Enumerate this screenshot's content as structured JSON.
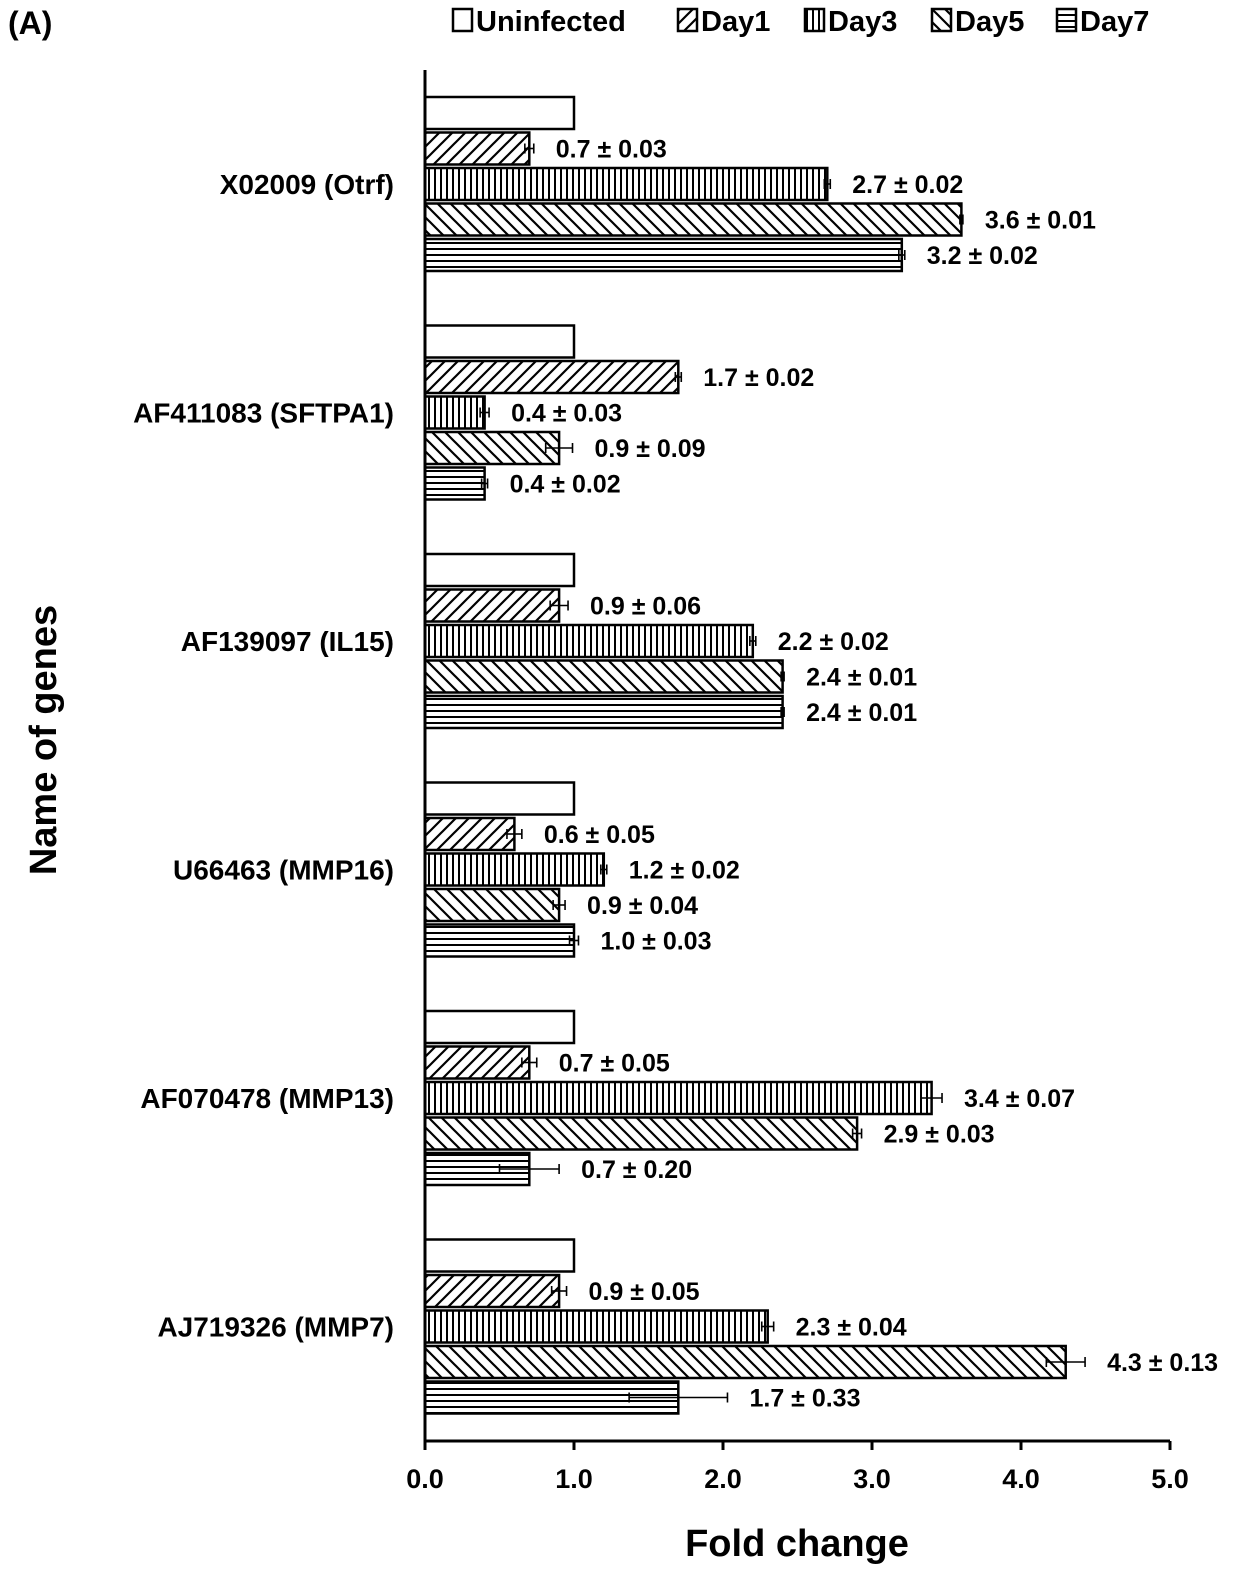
{
  "panel_label": "(A)",
  "chart_data": {
    "type": "bar",
    "orientation": "horizontal",
    "title": "",
    "xlabel": "Fold change",
    "ylabel": "Name of genes",
    "xlim": [
      0,
      5
    ],
    "xticks": [
      "0.0",
      "1.0",
      "2.0",
      "3.0",
      "4.0",
      "5.0"
    ],
    "legend_position": "top",
    "categories": [
      "X02009 (Otrf)",
      "AF411083 (SFTPA1)",
      "AF139097 (IL15)",
      "U66463 (MMP16)",
      "AF070478 (MMP13)",
      "AJ719326 (MMP7)"
    ],
    "series": [
      {
        "name": "Uninfected",
        "pattern": "none",
        "values": [
          1,
          1,
          1,
          1,
          1,
          1
        ],
        "errors": [
          0,
          0,
          0,
          0,
          0,
          0
        ],
        "labels": [
          "",
          "",
          "",
          "",
          "",
          ""
        ]
      },
      {
        "name": "Day1",
        "pattern": "diagonal-up",
        "values": [
          0.7,
          1.7,
          0.9,
          0.6,
          0.7,
          0.9
        ],
        "errors": [
          0.03,
          0.02,
          0.06,
          0.05,
          0.05,
          0.05
        ],
        "labels": [
          "0.7 ± 0.03",
          "1.7 ± 0.02",
          "0.9 ± 0.06",
          "0.6 ± 0.05",
          "0.7 ± 0.05",
          "0.9 ± 0.05"
        ]
      },
      {
        "name": "Day3",
        "pattern": "vertical",
        "values": [
          2.7,
          0.4,
          2.2,
          1.2,
          3.4,
          2.3
        ],
        "errors": [
          0.02,
          0.03,
          0.02,
          0.02,
          0.07,
          0.04
        ],
        "labels": [
          "2.7 ± 0.02",
          "0.4 ± 0.03",
          "2.2 ± 0.02",
          "1.2 ± 0.02",
          "3.4 ± 0.07",
          "2.3 ± 0.04"
        ]
      },
      {
        "name": "Day5",
        "pattern": "diagonal-down",
        "values": [
          3.6,
          0.9,
          2.4,
          0.9,
          2.9,
          4.3
        ],
        "errors": [
          0.01,
          0.09,
          0.01,
          0.04,
          0.03,
          0.13
        ],
        "labels": [
          "3.6 ± 0.01",
          "0.9 ± 0.09",
          "2.4 ± 0.01",
          "0.9 ± 0.04",
          "2.9 ± 0.03",
          "4.3 ± 0.13"
        ]
      },
      {
        "name": "Day7",
        "pattern": "horizontal",
        "values": [
          3.2,
          0.4,
          2.4,
          1.0,
          0.7,
          1.7
        ],
        "errors": [
          0.02,
          0.02,
          0.01,
          0.03,
          0.2,
          0.33
        ],
        "labels": [
          "3.2 ± 0.02",
          "0.4 ± 0.02",
          "2.4 ± 0.01",
          "1.0 ± 0.03",
          "0.7 ± 0.20",
          "1.7 ± 0.33"
        ]
      }
    ]
  }
}
